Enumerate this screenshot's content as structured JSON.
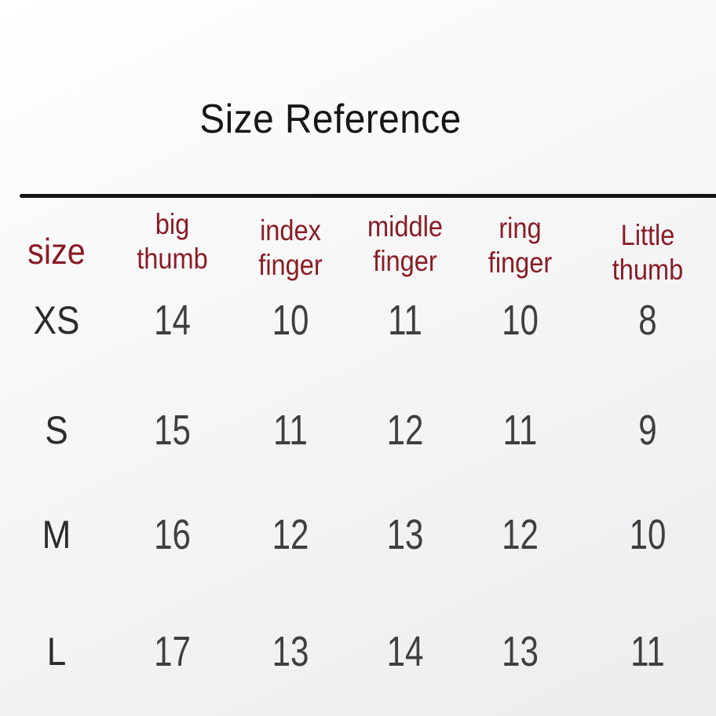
{
  "colors": {
    "header_red": "#8a1c24",
    "number_gray": "#3f3f3f",
    "title_black": "#161616",
    "rule_black": "#151515",
    "background": "#f3f3f4"
  },
  "chart_data": {
    "type": "table",
    "title": "Size Reference",
    "columns": [
      "size",
      "big thumb",
      "index finger",
      "middle finger",
      "ring finger",
      "Little thumb"
    ],
    "rows": [
      {
        "label": "XS",
        "values": [
          14,
          10,
          11,
          10,
          8
        ]
      },
      {
        "label": "S",
        "values": [
          15,
          11,
          12,
          11,
          9
        ]
      },
      {
        "label": "M",
        "values": [
          16,
          12,
          13,
          12,
          10
        ]
      },
      {
        "label": "L",
        "values": [
          17,
          13,
          14,
          13,
          11
        ]
      }
    ],
    "layout_hints": {
      "header_text_color": "#8a1c24",
      "top_rule": true,
      "grid": false,
      "alignment": "center"
    }
  }
}
